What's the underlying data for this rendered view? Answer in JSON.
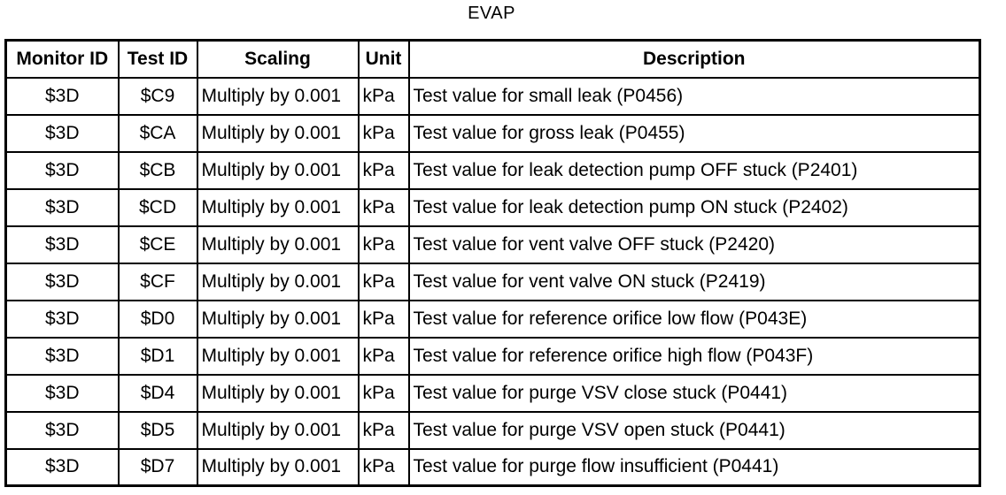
{
  "title": "EVAP",
  "colors": {
    "background": "#ffffff",
    "border": "#000000",
    "text": "#000000"
  },
  "table": {
    "columns": [
      {
        "key": "monitor_id",
        "label": "Monitor ID"
      },
      {
        "key": "test_id",
        "label": "Test ID"
      },
      {
        "key": "scaling",
        "label": "Scaling"
      },
      {
        "key": "unit",
        "label": "Unit"
      },
      {
        "key": "description",
        "label": "Description"
      }
    ],
    "rows": [
      {
        "monitor_id": "$3D",
        "test_id": "$C9",
        "scaling": "Multiply by 0.001",
        "unit": "kPa",
        "description": "Test value for small leak (P0456)"
      },
      {
        "monitor_id": "$3D",
        "test_id": "$CA",
        "scaling": "Multiply by 0.001",
        "unit": "kPa",
        "description": "Test value for gross leak (P0455)"
      },
      {
        "monitor_id": "$3D",
        "test_id": "$CB",
        "scaling": "Multiply by 0.001",
        "unit": "kPa",
        "description": "Test value for leak detection pump OFF stuck (P2401)"
      },
      {
        "monitor_id": "$3D",
        "test_id": "$CD",
        "scaling": "Multiply by 0.001",
        "unit": "kPa",
        "description": "Test value for leak detection pump ON stuck (P2402)"
      },
      {
        "monitor_id": "$3D",
        "test_id": "$CE",
        "scaling": "Multiply by 0.001",
        "unit": "kPa",
        "description": "Test value for vent valve OFF stuck (P2420)"
      },
      {
        "monitor_id": "$3D",
        "test_id": "$CF",
        "scaling": "Multiply by 0.001",
        "unit": "kPa",
        "description": "Test value for vent valve ON stuck (P2419)"
      },
      {
        "monitor_id": "$3D",
        "test_id": "$D0",
        "scaling": "Multiply by 0.001",
        "unit": "kPa",
        "description": "Test value for reference orifice low flow (P043E)"
      },
      {
        "monitor_id": "$3D",
        "test_id": "$D1",
        "scaling": "Multiply by 0.001",
        "unit": "kPa",
        "description": "Test value for reference orifice high flow (P043F)"
      },
      {
        "monitor_id": "$3D",
        "test_id": "$D4",
        "scaling": "Multiply by 0.001",
        "unit": "kPa",
        "description": "Test value for purge VSV close stuck (P0441)"
      },
      {
        "monitor_id": "$3D",
        "test_id": "$D5",
        "scaling": "Multiply by 0.001",
        "unit": "kPa",
        "description": "Test value for purge VSV open stuck (P0441)"
      },
      {
        "monitor_id": "$3D",
        "test_id": "$D7",
        "scaling": "Multiply by 0.001",
        "unit": "kPa",
        "description": "Test value for purge flow insufficient (P0441)"
      }
    ]
  }
}
